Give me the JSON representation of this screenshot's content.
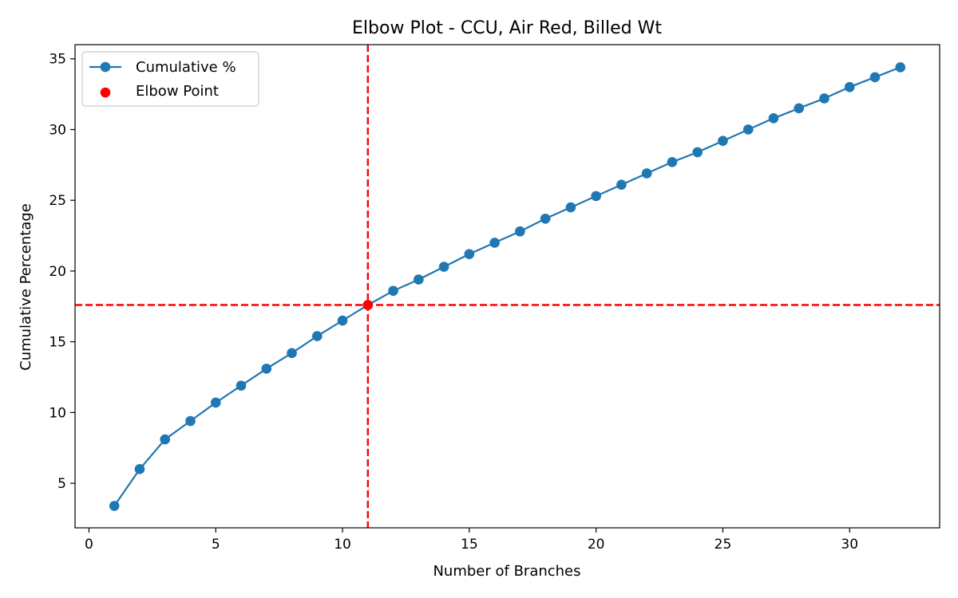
{
  "chart_data": {
    "type": "line",
    "title": "Elbow Plot - CCU, Air Red, Billed Wt",
    "xlabel": "Number of Branches",
    "ylabel": "Cumulative Percentage",
    "xlim": [
      -0.55,
      33.55
    ],
    "ylim": [
      1.85,
      36.0
    ],
    "x_ticks": [
      0,
      5,
      10,
      15,
      20,
      25,
      30
    ],
    "y_ticks": [
      5,
      10,
      15,
      20,
      25,
      30,
      35
    ],
    "grid": false,
    "legend_position": "top-left",
    "series": [
      {
        "name": "Cumulative %",
        "color": "#1f77b4",
        "marker": "circle",
        "x": [
          1,
          2,
          3,
          4,
          5,
          6,
          7,
          8,
          9,
          10,
          11,
          12,
          13,
          14,
          15,
          16,
          17,
          18,
          19,
          20,
          21,
          22,
          23,
          24,
          25,
          26,
          27,
          28,
          29,
          30,
          31,
          32
        ],
        "y": [
          3.4,
          6.0,
          8.1,
          9.4,
          10.7,
          11.9,
          13.1,
          14.2,
          15.4,
          16.5,
          17.6,
          18.6,
          19.4,
          20.3,
          21.2,
          22.0,
          22.8,
          23.7,
          24.5,
          25.3,
          26.1,
          26.9,
          27.7,
          28.4,
          29.2,
          30.0,
          30.8,
          31.5,
          32.2,
          33.0,
          33.7,
          34.4
        ]
      }
    ],
    "elbow": {
      "name": "Elbow Point",
      "x": 11,
      "y": 17.6,
      "color": "#ff0000"
    },
    "reference_lines": {
      "color": "#ff0000",
      "style": "dashed",
      "x": 11,
      "y": 17.6
    }
  }
}
